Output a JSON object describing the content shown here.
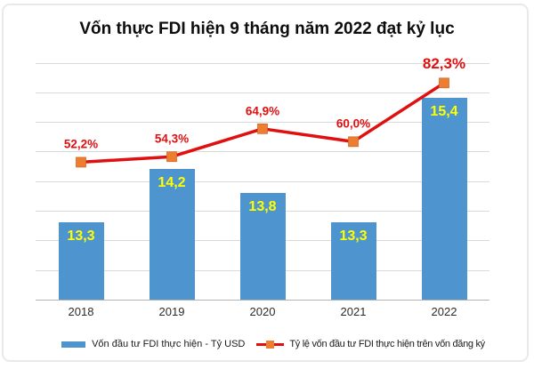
{
  "title": "Vốn thực FDI hiện 9 tháng năm 2022 đạt kỷ lục",
  "chart_data": {
    "type": "bar",
    "combo": "bar+line",
    "categories": [
      "2018",
      "2019",
      "2020",
      "2021",
      "2022"
    ],
    "series": [
      {
        "name": "Vốn đầu tư FDI thực hiện - Tỷ USD",
        "type": "bar",
        "values": [
          13.3,
          14.2,
          13.8,
          13.3,
          15.4
        ],
        "labels": [
          "13,3",
          "14,2",
          "13,8",
          "13,3",
          "15,4"
        ],
        "color": "#4e95d0",
        "label_color": "#ffff00",
        "axis_min": 12,
        "axis_max": 16
      },
      {
        "name": "Tỷ lệ vốn đầu tư FDI thực hiện trên vốn đăng ký",
        "type": "line",
        "values": [
          52.2,
          54.3,
          64.9,
          60.0,
          82.3
        ],
        "labels": [
          "52,2%",
          "54,3%",
          "64,9%",
          "60,0%",
          "82,3%"
        ],
        "color": "#e01010",
        "marker_color": "#ed7d31",
        "label_color": "#e01010",
        "axis_min": 0,
        "axis_max": 90,
        "emphasize_last_label": true
      }
    ],
    "grid": true,
    "gridline_color": "#d9d9d9",
    "axis_line_color": "#b3b3b3",
    "legend_position": "bottom"
  }
}
